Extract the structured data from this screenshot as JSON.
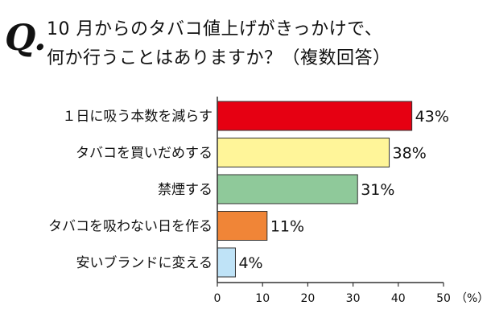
{
  "header": {
    "q_mark": "Q.",
    "title_line1": "10 月からのタバコ値上げがきっかけで、",
    "title_line2": "何か行うことはありますか？（複数回答）"
  },
  "chart_data": {
    "type": "bar",
    "orientation": "horizontal",
    "categories": [
      "１日に吸う本数を減らす",
      "タバコを買いだめする",
      "禁煙する",
      "タバコを吸わない日を作る",
      "安いブランドに変える"
    ],
    "values": [
      43,
      38,
      31,
      11,
      4
    ],
    "value_labels": [
      "43%",
      "38%",
      "31%",
      "11%",
      "4%"
    ],
    "colors": [
      "#e60012",
      "#fff599",
      "#8fc99a",
      "#f08537",
      "#bfe3f7"
    ],
    "xlim": [
      0,
      50
    ],
    "xticks": [
      0,
      10,
      20,
      30,
      40,
      50
    ],
    "xtick_labels": [
      "0",
      "10",
      "20",
      "30",
      "40",
      "50"
    ],
    "unit_label": "（%）",
    "grid": false,
    "legend": false
  }
}
